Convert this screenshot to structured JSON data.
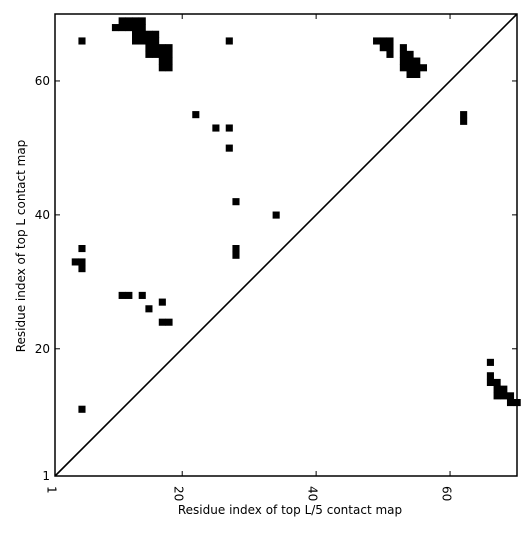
{
  "chart_data": {
    "type": "heatmap",
    "title": "",
    "xlabel": "Residue index of top L/5 contact map",
    "ylabel": "Residue index of top L contact map",
    "xlim": [
      1,
      70
    ],
    "ylim": [
      1,
      70
    ],
    "x_ticks": [
      1,
      20,
      40,
      60
    ],
    "y_ticks": [
      1,
      20,
      40,
      60
    ],
    "x_tick_labels": [
      "1",
      "20",
      "40",
      "60"
    ],
    "y_tick_labels": [
      "1",
      "20",
      "40",
      "60"
    ],
    "x_tick_rotation": 270,
    "diagonal": {
      "from": [
        1,
        1
      ],
      "to": [
        70,
        70
      ]
    },
    "cell_color": "#000000",
    "background_color": "#ffffff",
    "grid": false,
    "contacts_upper_left": [
      [
        5,
        66
      ],
      [
        11,
        68
      ],
      [
        11,
        69
      ],
      [
        12,
        68
      ],
      [
        12,
        69
      ],
      [
        13,
        68
      ],
      [
        13,
        69
      ],
      [
        14,
        68
      ],
      [
        14,
        69
      ],
      [
        10,
        68
      ],
      [
        13,
        66
      ],
      [
        13,
        67
      ],
      [
        14,
        66
      ],
      [
        14,
        67
      ],
      [
        15,
        66
      ],
      [
        15,
        67
      ],
      [
        16,
        66
      ],
      [
        16,
        67
      ],
      [
        15,
        64
      ],
      [
        15,
        65
      ],
      [
        16,
        64
      ],
      [
        16,
        65
      ],
      [
        17,
        64
      ],
      [
        17,
        65
      ],
      [
        18,
        64
      ],
      [
        18,
        65
      ],
      [
        17,
        62
      ],
      [
        17,
        63
      ],
      [
        18,
        62
      ],
      [
        18,
        63
      ],
      [
        27,
        66
      ],
      [
        22,
        55
      ],
      [
        25,
        53
      ],
      [
        27,
        53
      ],
      [
        27,
        50
      ],
      [
        28,
        42
      ],
      [
        34,
        40
      ],
      [
        28,
        34
      ],
      [
        28,
        35
      ],
      [
        5,
        35
      ],
      [
        4,
        33
      ],
      [
        5,
        33
      ],
      [
        5,
        32
      ],
      [
        11,
        28
      ],
      [
        12,
        28
      ],
      [
        14,
        28
      ],
      [
        17,
        27
      ],
      [
        15,
        26
      ],
      [
        17,
        24
      ],
      [
        18,
        24
      ],
      [
        5,
        11
      ],
      [
        49,
        66
      ],
      [
        50,
        66
      ],
      [
        51,
        66
      ],
      [
        50,
        65
      ],
      [
        51,
        65
      ],
      [
        51,
        64
      ],
      [
        53,
        65
      ],
      [
        53,
        64
      ],
      [
        54,
        64
      ],
      [
        53,
        63
      ],
      [
        54,
        63
      ],
      [
        55,
        63
      ],
      [
        53,
        62
      ],
      [
        54,
        62
      ],
      [
        55,
        62
      ],
      [
        56,
        62
      ],
      [
        54,
        61
      ],
      [
        55,
        61
      ],
      [
        62,
        55
      ],
      [
        62,
        54
      ]
    ],
    "contacts_lower_right": [
      [
        66,
        18
      ],
      [
        66,
        16
      ],
      [
        66,
        15
      ],
      [
        67,
        15
      ],
      [
        67,
        14
      ],
      [
        68,
        14
      ],
      [
        67,
        13
      ],
      [
        68,
        13
      ],
      [
        69,
        13
      ],
      [
        69,
        12
      ],
      [
        70,
        12
      ]
    ]
  }
}
